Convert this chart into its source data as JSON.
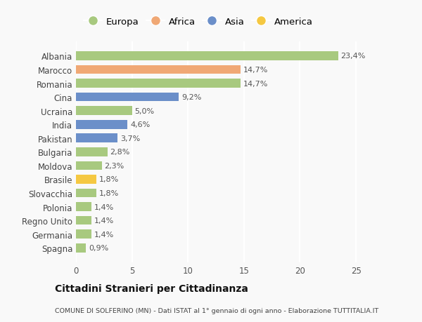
{
  "countries": [
    "Spagna",
    "Germania",
    "Regno Unito",
    "Polonia",
    "Slovacchia",
    "Brasile",
    "Moldova",
    "Bulgaria",
    "Pakistan",
    "India",
    "Ucraina",
    "Cina",
    "Romania",
    "Marocco",
    "Albania"
  ],
  "values": [
    0.9,
    1.4,
    1.4,
    1.4,
    1.8,
    1.8,
    2.3,
    2.8,
    3.7,
    4.6,
    5.0,
    9.2,
    14.7,
    14.7,
    23.4
  ],
  "labels": [
    "0,9%",
    "1,4%",
    "1,4%",
    "1,4%",
    "1,8%",
    "1,8%",
    "2,3%",
    "2,8%",
    "3,7%",
    "4,6%",
    "5,0%",
    "9,2%",
    "14,7%",
    "14,7%",
    "23,4%"
  ],
  "continents": [
    "Europa",
    "Europa",
    "Europa",
    "Europa",
    "Europa",
    "America",
    "Europa",
    "Europa",
    "Asia",
    "Asia",
    "Europa",
    "Asia",
    "Europa",
    "Africa",
    "Europa"
  ],
  "colors": {
    "Europa": "#a8c97f",
    "Africa": "#f0a875",
    "Asia": "#6b8fc9",
    "America": "#f5c842"
  },
  "legend_order": [
    "Europa",
    "Africa",
    "Asia",
    "America"
  ],
  "title": "Cittadini Stranieri per Cittadinanza",
  "subtitle": "COMUNE DI SOLFERINO (MN) - Dati ISTAT al 1° gennaio di ogni anno - Elaborazione TUTTITALIA.IT",
  "xlim": [
    0,
    26
  ],
  "xticks": [
    0,
    5,
    10,
    15,
    20,
    25
  ],
  "background_color": "#f9f9f9",
  "grid_color": "#ffffff",
  "bar_height": 0.65
}
